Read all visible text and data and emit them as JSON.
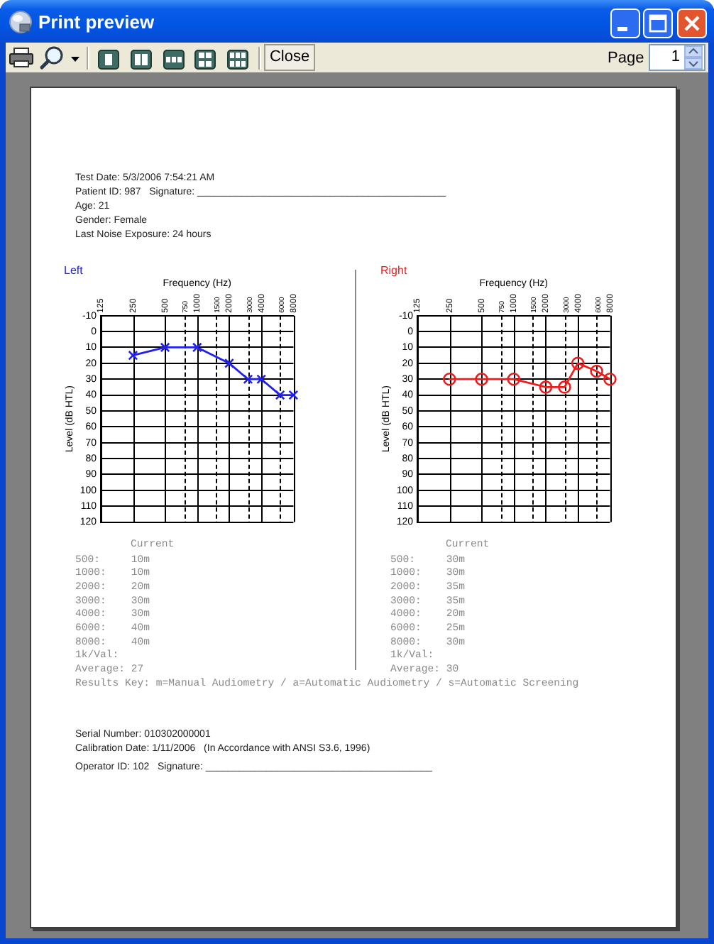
{
  "chart_data": [
    {
      "type": "other",
      "title": "Print preview",
      "annotations": [
        "Close",
        "Page",
        "1"
      ]
    },
    {
      "type": "other",
      "annotations": [
        "Test Date: 5/3/2006 7:54:21 AM",
        "Patient ID: 987   Signature: _____________________________________________",
        "Age: 21",
        "Gender: Female",
        "Last Noise Exposure: 24 hours"
      ]
    },
    {
      "type": "line",
      "title": "Left",
      "xlabel": "Frequency (Hz)",
      "ylabel": "Level (dB HTL)",
      "x": [
        250,
        500,
        1000,
        2000,
        3000,
        4000,
        6000,
        8000
      ],
      "series": [
        {
          "color": "#2020f0",
          "values": [
            15,
            10,
            10,
            20,
            30,
            30,
            40,
            40
          ]
        }
      ],
      "log": "x",
      "xlim": [
        125,
        8000
      ],
      "xticks": [
        125,
        250,
        500,
        750,
        1000,
        1500,
        2000,
        3000,
        4000,
        6000,
        8000
      ],
      "ylim": [
        120,
        -10
      ],
      "yticks": [
        -10,
        0,
        10,
        20,
        30,
        40,
        50,
        60,
        70,
        80,
        90,
        100,
        110,
        120
      ],
      "grid": true,
      "marker": "cross"
    },
    {
      "type": "line",
      "title": "Right",
      "xlabel": "Frequency (Hz)",
      "ylabel": "Level (dB HTL)",
      "x": [
        250,
        500,
        1000,
        2000,
        3000,
        4000,
        6000,
        8000
      ],
      "series": [
        {
          "color": "#f01c1c",
          "values": [
            30,
            30,
            30,
            35,
            35,
            20,
            25,
            30
          ]
        }
      ],
      "log": "x",
      "xlim": [
        125,
        8000
      ],
      "xticks": [
        125,
        250,
        500,
        750,
        1000,
        1500,
        2000,
        3000,
        4000,
        6000,
        8000
      ],
      "ylim": [
        120,
        -10
      ],
      "yticks": [
        -10,
        0,
        10,
        20,
        30,
        40,
        50,
        60,
        70,
        80,
        90,
        100,
        110,
        120
      ],
      "grid": true,
      "marker": "circle"
    },
    {
      "type": "other",
      "annotations": [
        "Current",
        "500:     10m",
        "1000:    10m",
        "2000:    20m",
        "3000:    30m",
        "4000:    30m",
        "6000:    40m",
        "8000:    40m",
        "1k/Val:",
        "Average: 27"
      ]
    },
    {
      "type": "other",
      "annotations": [
        "Current",
        "500:     30m",
        "1000:    30m",
        "2000:    35m",
        "3000:    35m",
        "4000:    20m",
        "6000:    25m",
        "8000:    30m",
        "1k/Val:",
        "Average: 30"
      ]
    },
    {
      "type": "other",
      "annotations": [
        "Results Key: m=Manual Audiometry / a=Automatic Audiometry / s=Automatic Screening",
        "Serial Number: 010302000001",
        "Calibration Date: 1/11/2006   (In Accordance with ANSI S3.6, 1996)",
        "Operator ID: 102   Signature: _________________________________________"
      ]
    }
  ]
}
